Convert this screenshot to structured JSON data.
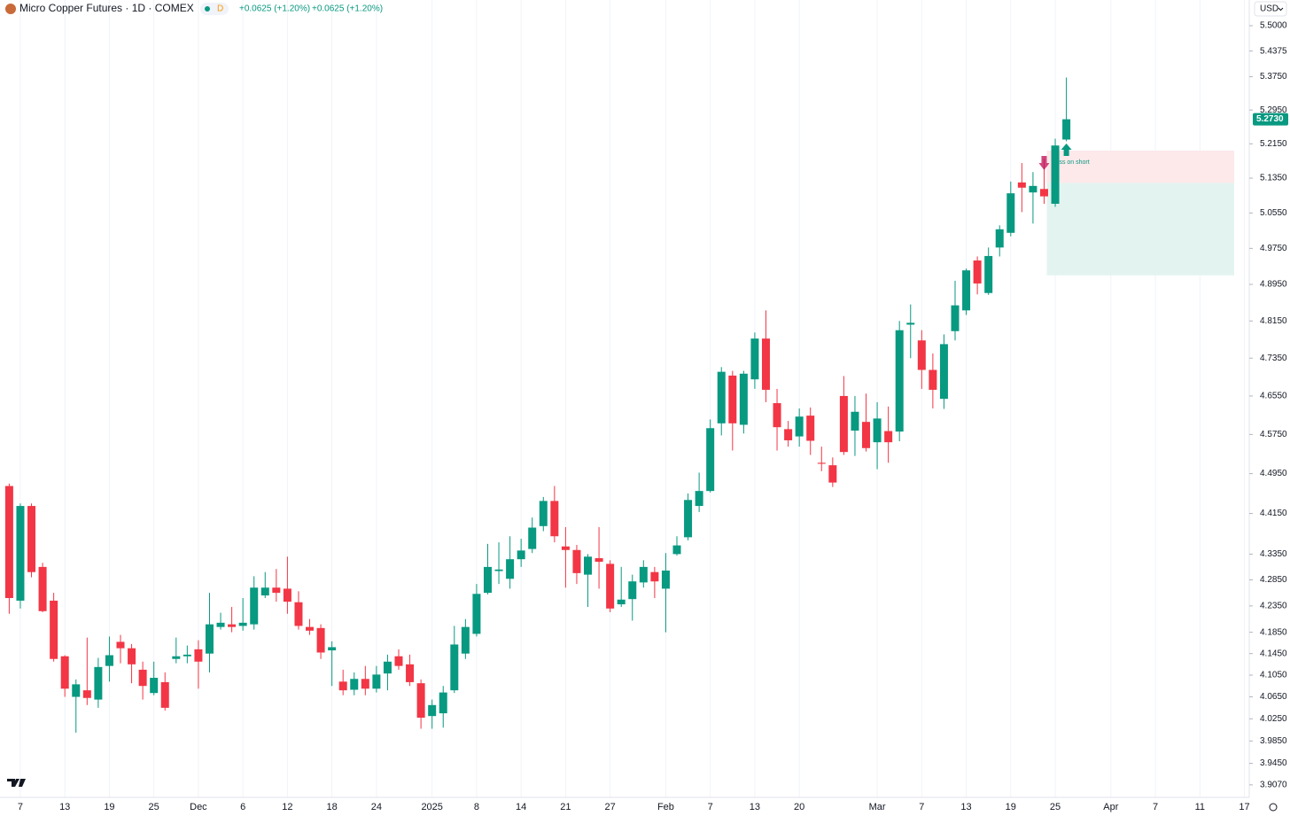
{
  "header": {
    "title": "Micro Copper Futures · 1D · COMEX",
    "interval_badge": "D",
    "change": "+0.0625 (+1.20%)",
    "change_2": "+0.0625 (+1.20%)",
    "currency": "USD"
  },
  "chart_data": {
    "type": "candlestick",
    "log_scale": true,
    "grid": "vertical",
    "up_color": "#089981",
    "down_color": "#f23645",
    "categories": [
      null,
      "7",
      null,
      null,
      null,
      "13",
      null,
      null,
      null,
      "19",
      null,
      null,
      null,
      "25",
      null,
      null,
      null,
      "Dec",
      null,
      null,
      null,
      "6",
      null,
      null,
      null,
      "12",
      null,
      null,
      null,
      "18",
      null,
      null,
      null,
      "24",
      null,
      null,
      null,
      null,
      "2025",
      null,
      null,
      null,
      "8",
      null,
      null,
      null,
      "14",
      null,
      null,
      null,
      "21",
      null,
      null,
      null,
      "27",
      null,
      null,
      null,
      null,
      "Feb",
      null,
      null,
      null,
      "7",
      null,
      null,
      null,
      "13",
      null,
      null,
      null,
      "20",
      null,
      null,
      null,
      null,
      null,
      null,
      "Mar",
      null,
      null,
      null,
      "7",
      null,
      null,
      null,
      "13",
      null,
      null,
      null,
      "19",
      null,
      null,
      null,
      "25",
      null,
      null,
      null,
      null,
      "Apr",
      null,
      null,
      null,
      "7",
      null,
      null,
      null,
      "11",
      null,
      null,
      null,
      "17"
    ],
    "open": [
      4.47,
      4.245,
      4.43,
      4.31,
      4.245,
      4.14,
      4.065,
      4.077,
      4.06,
      4.122,
      4.167,
      4.155,
      4.115,
      4.072,
      4.092,
      4.135,
      4.14,
      4.153,
      4.145,
      4.195,
      4.2,
      4.197,
      4.2,
      4.255,
      4.27,
      4.268,
      4.242,
      4.195,
      4.193,
      4.151,
      4.093,
      4.078,
      4.098,
      4.08,
      4.108,
      4.14,
      4.125,
      4.09,
      4.03,
      4.035,
      4.077,
      4.145,
      4.182,
      4.26,
      4.302,
      4.287,
      4.325,
      4.345,
      4.39,
      4.44,
      4.35,
      4.343,
      4.295,
      4.327,
      4.316,
      4.238,
      4.248,
      4.28,
      4.3,
      4.268,
      4.335,
      4.368,
      4.43,
      4.46,
      4.598,
      4.698,
      4.595,
      4.69,
      4.777,
      4.64,
      4.586,
      4.571,
      4.614,
      4.517,
      4.512,
      4.655,
      4.583,
      4.601,
      4.559,
      4.582,
      4.581,
      4.807,
      4.773,
      4.71,
      4.649,
      4.793,
      4.838,
      4.948,
      4.876,
      4.977,
      5.01,
      5.125,
      5.102,
      5.11,
      5.076,
      5.225,
      null,
      null,
      null,
      null,
      null,
      null,
      null,
      null,
      null,
      null,
      null,
      null,
      null,
      null,
      null,
      null
    ],
    "high": [
      4.475,
      4.435,
      4.435,
      4.318,
      4.26,
      4.142,
      4.097,
      4.175,
      4.137,
      4.177,
      4.18,
      4.163,
      4.13,
      4.13,
      4.11,
      4.175,
      4.16,
      4.17,
      4.26,
      4.222,
      4.233,
      4.25,
      4.292,
      4.3,
      4.306,
      4.33,
      4.263,
      4.21,
      4.2,
      4.168,
      4.115,
      4.11,
      4.122,
      4.122,
      4.143,
      4.153,
      4.143,
      4.097,
      4.06,
      4.085,
      4.197,
      4.21,
      4.277,
      4.355,
      4.358,
      4.37,
      4.365,
      4.407,
      4.448,
      4.47,
      4.388,
      4.353,
      4.335,
      4.388,
      4.323,
      4.31,
      4.295,
      4.323,
      4.31,
      4.337,
      4.37,
      4.455,
      4.497,
      4.606,
      4.716,
      4.708,
      4.708,
      4.79,
      4.838,
      4.67,
      4.603,
      4.629,
      4.631,
      4.55,
      4.528,
      4.697,
      4.655,
      4.66,
      4.642,
      4.633,
      4.815,
      4.851,
      4.795,
      4.745,
      4.786,
      4.903,
      4.93,
      4.957,
      4.977,
      5.027,
      5.127,
      5.17,
      5.149,
      5.18,
      5.227,
      5.373,
      null,
      null,
      null,
      null,
      null,
      null,
      null,
      null,
      null,
      null,
      null,
      null,
      null,
      null,
      null,
      null
    ],
    "low": [
      4.22,
      4.23,
      4.29,
      4.223,
      4.13,
      4.065,
      4.0,
      4.05,
      4.045,
      4.093,
      4.127,
      4.09,
      4.06,
      4.068,
      4.04,
      4.127,
      4.127,
      4.08,
      4.11,
      4.19,
      4.185,
      4.188,
      4.19,
      4.25,
      4.243,
      4.22,
      4.19,
      4.18,
      4.135,
      4.085,
      4.068,
      4.068,
      4.068,
      4.073,
      4.077,
      4.115,
      4.085,
      4.007,
      4.007,
      4.009,
      4.072,
      4.135,
      4.177,
      4.257,
      4.277,
      4.268,
      4.31,
      4.337,
      4.38,
      4.358,
      4.27,
      4.277,
      4.233,
      4.268,
      4.223,
      4.233,
      4.207,
      4.27,
      4.25,
      4.185,
      4.332,
      4.362,
      4.418,
      4.457,
      4.573,
      4.542,
      4.577,
      4.67,
      4.642,
      4.542,
      4.55,
      4.55,
      4.533,
      4.5,
      4.468,
      4.533,
      4.531,
      4.54,
      4.504,
      4.517,
      4.561,
      4.735,
      4.67,
      4.629,
      4.628,
      4.773,
      4.828,
      4.873,
      4.872,
      4.957,
      5.002,
      5.057,
      5.031,
      5.076,
      5.069,
      5.221,
      null,
      null,
      null,
      null,
      null,
      null,
      null,
      null,
      null,
      null,
      null,
      null,
      null,
      null,
      null,
      null
    ],
    "close": [
      4.25,
      4.43,
      4.3,
      4.225,
      4.135,
      4.08,
      4.088,
      4.063,
      4.12,
      4.142,
      4.155,
      4.125,
      4.085,
      4.1,
      4.045,
      4.14,
      4.143,
      4.13,
      4.2,
      4.203,
      4.195,
      4.203,
      4.27,
      4.27,
      4.26,
      4.243,
      4.197,
      4.188,
      4.147,
      4.157,
      4.077,
      4.098,
      4.08,
      4.106,
      4.13,
      4.122,
      4.092,
      4.027,
      4.05,
      4.073,
      4.162,
      4.195,
      4.258,
      4.31,
      4.305,
      4.325,
      4.342,
      4.387,
      4.44,
      4.37,
      4.343,
      4.298,
      4.33,
      4.32,
      4.23,
      4.247,
      4.282,
      4.31,
      4.282,
      4.303,
      4.352,
      4.442,
      4.46,
      4.588,
      4.706,
      4.598,
      4.702,
      4.777,
      4.668,
      4.59,
      4.563,
      4.612,
      4.562,
      4.515,
      4.477,
      4.539,
      4.622,
      4.547,
      4.608,
      4.559,
      4.795,
      4.811,
      4.71,
      4.668,
      4.765,
      4.849,
      4.926,
      4.897,
      4.958,
      5.018,
      5.1,
      5.113,
      5.117,
      5.093,
      5.211,
      5.273,
      null,
      null,
      null,
      null,
      null,
      null,
      null,
      null,
      null,
      null,
      null,
      null,
      null,
      null,
      null,
      null
    ],
    "last_price_label": "5.2730",
    "position": {
      "entry": 5.124,
      "stop": 5.199,
      "target": 4.915,
      "label": "ss on short",
      "stop_color": "#fde8ea",
      "target_color": "#e3f4f0"
    },
    "ylim": [
      3.885,
      5.564
    ],
    "yticks": [
      {
        "value": 5.5,
        "label": "5.5000"
      },
      {
        "value": 5.4375,
        "label": "5.4375"
      },
      {
        "value": 5.375,
        "label": "5.3750"
      },
      {
        "value": 5.295,
        "label": "5.2950"
      },
      {
        "value": 5.215,
        "label": "5.2150"
      },
      {
        "value": 5.135,
        "label": "5.1350"
      },
      {
        "value": 5.055,
        "label": "5.0550"
      },
      {
        "value": 4.975,
        "label": "4.9750"
      },
      {
        "value": 4.895,
        "label": "4.8950"
      },
      {
        "value": 4.815,
        "label": "4.8150"
      },
      {
        "value": 4.735,
        "label": "4.7350"
      },
      {
        "value": 4.655,
        "label": "4.6550"
      },
      {
        "value": 4.575,
        "label": "4.5750"
      },
      {
        "value": 4.495,
        "label": "4.4950"
      },
      {
        "value": 4.415,
        "label": "4.4150"
      },
      {
        "value": 4.335,
        "label": "4.3350"
      },
      {
        "value": 4.285,
        "label": "4.2850"
      },
      {
        "value": 4.235,
        "label": "4.2350"
      },
      {
        "value": 4.185,
        "label": "4.1850"
      },
      {
        "value": 4.145,
        "label": "4.1450"
      },
      {
        "value": 4.105,
        "label": "4.1050"
      },
      {
        "value": 4.065,
        "label": "4.0650"
      },
      {
        "value": 4.025,
        "label": "4.0250"
      },
      {
        "value": 3.985,
        "label": "3.9850"
      },
      {
        "value": 3.945,
        "label": "3.9450"
      },
      {
        "value": 3.907,
        "label": "3.9070"
      }
    ]
  }
}
